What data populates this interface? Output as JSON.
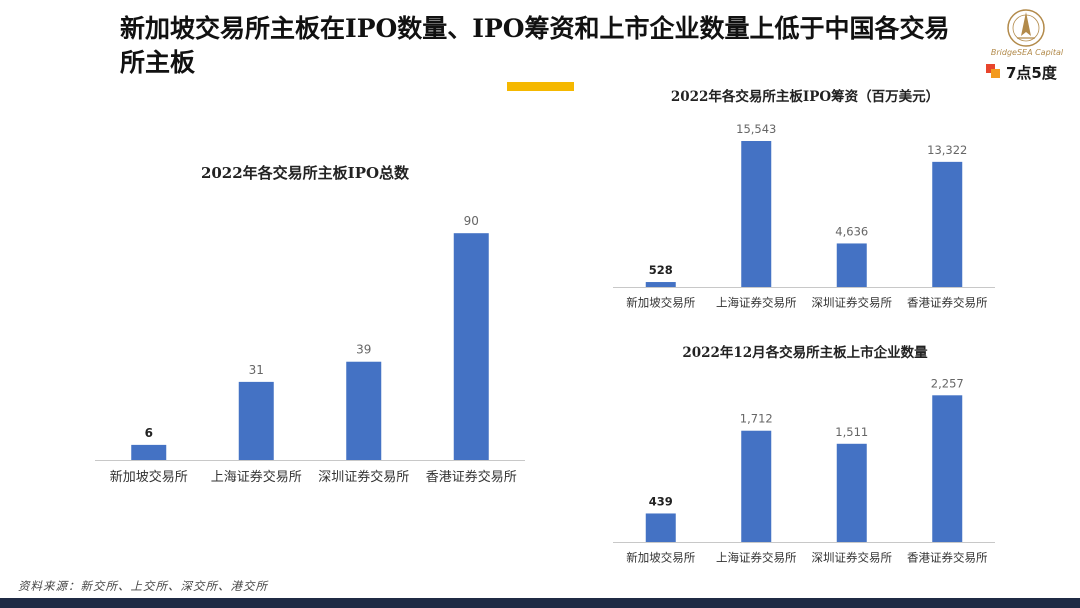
{
  "page": {
    "headline": "新加坡交易所主板在IPO数量、IPO筹资和上市企业数量上低于中国各交易所主板",
    "source": "资料来源：新交所、上交所、深交所、港交所",
    "logo": {
      "name": "BridgeSEA Capital",
      "brand": "7点5度"
    },
    "colors": {
      "bar": "#4472C4",
      "accent": "#F5B800",
      "band": "#1F2A44",
      "gold": "#B28A4A",
      "logo_red": "#E8452C",
      "logo_orange": "#F39A1E"
    }
  },
  "chart_data": [
    {
      "type": "bar",
      "title": "2022年各交易所主板IPO总数",
      "categories": [
        "新加坡交易所",
        "上海证券交易所",
        "深圳证券交易所",
        "香港证券交易所"
      ],
      "values": [
        6,
        31,
        39,
        90
      ],
      "value_labels": [
        "6",
        "31",
        "39",
        "90"
      ],
      "ylim": [
        0,
        100
      ],
      "grid": false
    },
    {
      "type": "bar",
      "title": "2022年各交易所主板IPO筹资（百万美元）",
      "categories": [
        "新加坡交易所",
        "上海证券交易所",
        "深圳证券交易所",
        "香港证券交易所"
      ],
      "values": [
        528,
        15543,
        4636,
        13322
      ],
      "value_labels": [
        "528",
        "15,543",
        "4,636",
        "13,322"
      ],
      "ylim": [
        0,
        16500
      ],
      "grid": false
    },
    {
      "type": "bar",
      "title": "2022年12月各交易所主板上市企业数量",
      "categories": [
        "新加坡交易所",
        "上海证券交易所",
        "深圳证券交易所",
        "香港证券交易所"
      ],
      "values": [
        439,
        1712,
        1511,
        2257
      ],
      "value_labels": [
        "439",
        "1,712",
        "1,511",
        "2,257"
      ],
      "ylim": [
        0,
        2400
      ],
      "grid": false
    }
  ]
}
